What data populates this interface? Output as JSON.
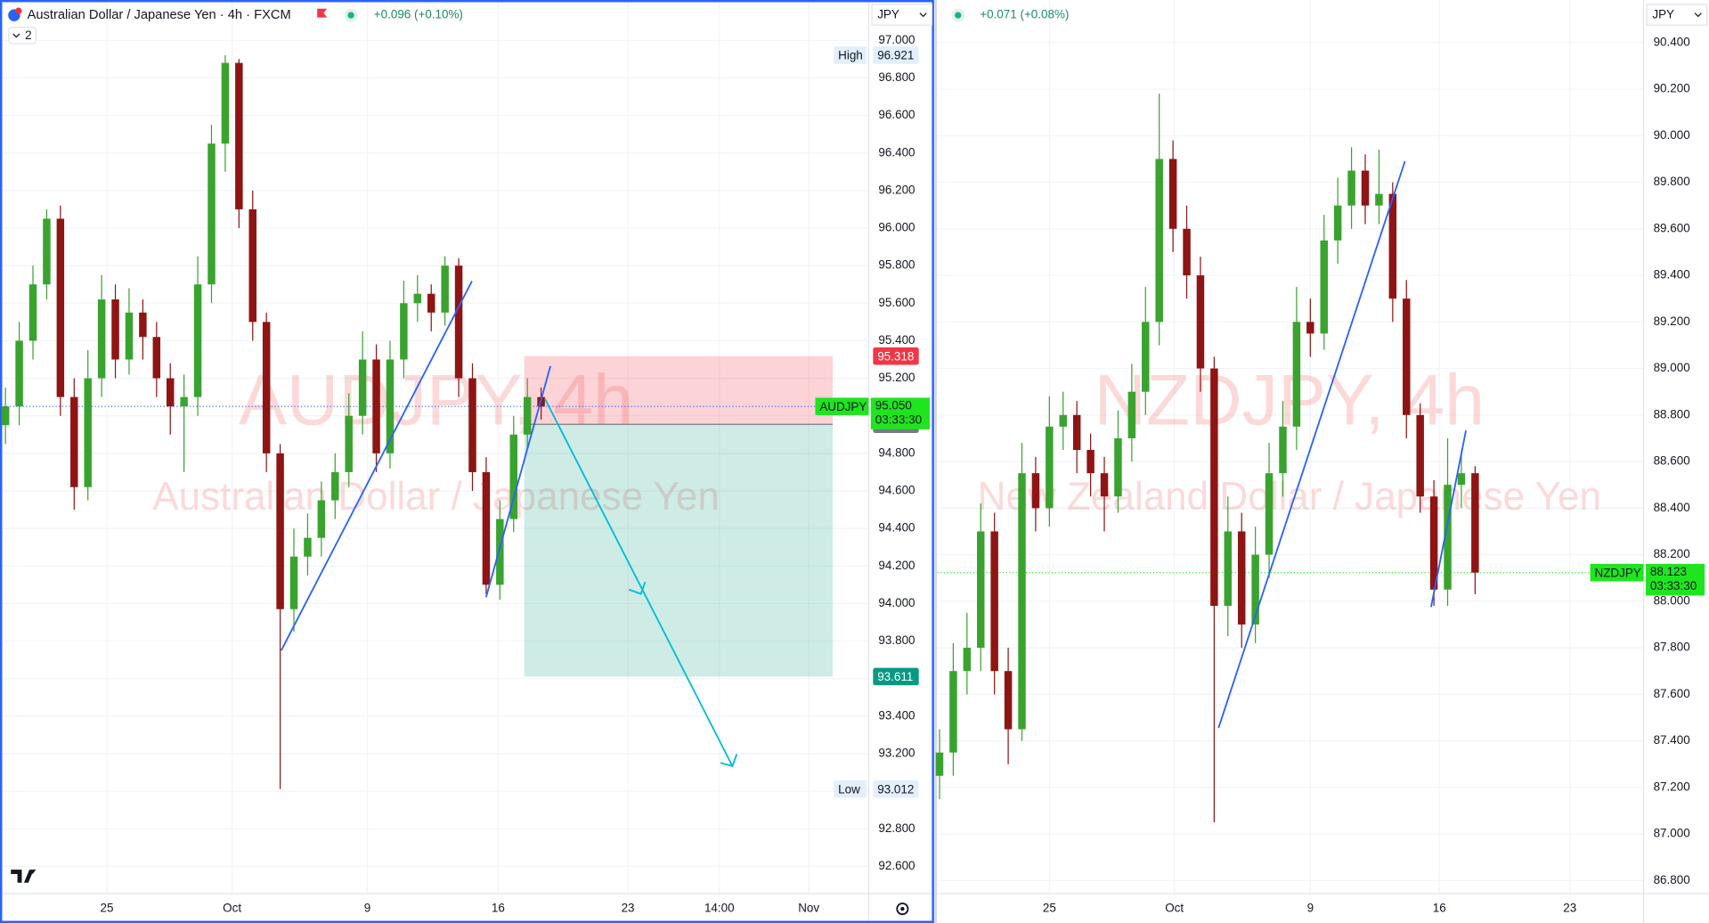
{
  "chart_data": [
    {
      "type": "candlestick",
      "title": "Australian Dollar / Japanese Yen · 4h · FXCM",
      "change": "+0.096 (+0.10%)",
      "layers": 2,
      "currency": "JPY",
      "watermark": "AUDJPY, 4h",
      "watermark_subtitle": "Australian Dollar / Japanese Yen",
      "up_color": "#3aa330",
      "down_color": "#8f1414",
      "series": [
        {
          "name": "AUDJPY",
          "open": [
            94.95,
            95.05,
            95.4,
            95.7,
            96.05,
            95.1,
            94.62,
            95.2,
            95.62,
            95.3,
            95.55,
            95.42,
            95.2,
            95.05,
            95.1,
            95.7,
            96.45,
            96.88,
            96.1,
            95.5,
            94.8,
            93.97,
            94.25,
            94.35,
            94.55,
            94.7,
            95.0,
            95.3,
            94.8,
            95.3,
            95.6,
            95.65,
            95.55,
            95.8,
            95.2,
            94.7,
            94.1,
            94.45,
            94.9,
            95.1
          ],
          "high": [
            95.15,
            95.5,
            95.8,
            96.1,
            96.12,
            95.2,
            95.35,
            95.75,
            95.7,
            95.68,
            95.62,
            95.5,
            95.28,
            95.22,
            95.85,
            96.55,
            96.921,
            96.9,
            96.2,
            95.55,
            94.85,
            94.4,
            94.48,
            94.65,
            94.8,
            95.12,
            95.45,
            95.38,
            95.4,
            95.72,
            95.75,
            95.7,
            95.85,
            95.84,
            95.28,
            94.78,
            94.55,
            95.0,
            95.2,
            95.15
          ],
          "low": [
            94.85,
            94.95,
            95.3,
            95.62,
            95.0,
            94.5,
            94.55,
            95.1,
            95.2,
            95.22,
            95.3,
            95.1,
            94.9,
            94.7,
            95.0,
            95.6,
            96.3,
            96.0,
            95.4,
            94.7,
            93.012,
            93.85,
            94.15,
            94.25,
            94.45,
            94.62,
            94.9,
            94.7,
            94.72,
            95.2,
            95.5,
            95.45,
            95.48,
            95.1,
            94.6,
            94.05,
            94.02,
            94.38,
            94.82,
            94.98
          ],
          "close": [
            95.05,
            95.4,
            95.7,
            96.05,
            95.1,
            94.62,
            95.2,
            95.62,
            95.3,
            95.55,
            95.42,
            95.2,
            95.05,
            95.1,
            95.7,
            96.45,
            96.88,
            96.1,
            95.5,
            94.8,
            93.97,
            94.25,
            94.35,
            94.55,
            94.7,
            95.0,
            95.3,
            94.8,
            95.3,
            95.6,
            95.65,
            95.55,
            95.8,
            95.2,
            94.7,
            94.1,
            94.45,
            94.9,
            95.1,
            95.05
          ]
        }
      ],
      "ylim": [
        92.455,
        97.215
      ],
      "yticks": [
        {
          "value": 92.6,
          "label": "92.600"
        },
        {
          "value": 92.8,
          "label": "92.800"
        },
        {
          "value": 93.0,
          "label": "93.000"
        },
        {
          "value": 93.2,
          "label": "93.200"
        },
        {
          "value": 93.4,
          "label": "93.400"
        },
        {
          "value": 93.6,
          "label": "93.600"
        },
        {
          "value": 93.8,
          "label": "93.800"
        },
        {
          "value": 94.0,
          "label": "94.000"
        },
        {
          "value": 94.2,
          "label": "94.200"
        },
        {
          "value": 94.4,
          "label": "94.400"
        },
        {
          "value": 94.6,
          "label": "94.600"
        },
        {
          "value": 94.8,
          "label": "94.800"
        },
        {
          "value": 95.0,
          "label": "95.000"
        },
        {
          "value": 95.2,
          "label": "95.200"
        },
        {
          "value": 95.4,
          "label": "95.400"
        },
        {
          "value": 95.6,
          "label": "95.600"
        },
        {
          "value": 95.8,
          "label": "95.800"
        },
        {
          "value": 96.0,
          "label": "96.000"
        },
        {
          "value": 96.2,
          "label": "96.200"
        },
        {
          "value": 96.4,
          "label": "96.400"
        },
        {
          "value": 96.6,
          "label": "96.600"
        },
        {
          "value": 96.8,
          "label": "96.800"
        },
        {
          "value": 97.0,
          "label": "97.000"
        }
      ],
      "xlim": [
        -0.4,
        62.85
      ],
      "xticks": [
        {
          "value": 7.38,
          "label": "25"
        },
        {
          "value": 16.5,
          "label": "Oct"
        },
        {
          "value": 26.35,
          "label": "9"
        },
        {
          "value": 35.87,
          "label": "16"
        },
        {
          "value": 45.32,
          "label": "23"
        },
        {
          "value": 51.98,
          "label": "14:00"
        },
        {
          "value": 58.49,
          "label": "Nov"
        }
      ],
      "grid": true,
      "high_mark": {
        "label": "High",
        "value": 96.921
      },
      "low_mark": {
        "label": "Low",
        "value": 93.012
      },
      "last": {
        "value": 95.05,
        "value_label": "95.050",
        "countdown": "03:33:30",
        "color": "#1fe51f"
      },
      "position": {
        "stop": 95.318,
        "entry": 94.955,
        "target": 93.611,
        "stop_color": "#f23645",
        "entry_color": "#787b86",
        "target_color": "#089981"
      }
    },
    {
      "type": "candlestick",
      "change": "+0.071 (+0.08%)",
      "currency": "JPY",
      "watermark": "NZDJPY, 4h",
      "watermark_subtitle": "New Zealand Dollar / Japanese Yen",
      "up_color": "#3aa330",
      "down_color": "#8f1414",
      "series": [
        {
          "name": "NZDJPY",
          "open": [
            87.25,
            87.35,
            87.7,
            87.8,
            88.3,
            87.7,
            87.45,
            88.55,
            88.4,
            88.75,
            88.8,
            88.65,
            88.55,
            88.45,
            88.7,
            88.9,
            89.2,
            89.9,
            89.6,
            89.4,
            89.0,
            87.98,
            88.3,
            87.9,
            88.2,
            88.55,
            88.75,
            89.2,
            89.15,
            89.55,
            89.7,
            89.85,
            89.7,
            89.75,
            89.3,
            88.8,
            88.45,
            88.05,
            88.5,
            88.55
          ],
          "high": [
            87.45,
            87.82,
            87.95,
            88.42,
            88.38,
            87.8,
            88.68,
            88.62,
            88.88,
            88.9,
            88.86,
            88.72,
            88.62,
            88.82,
            89.02,
            89.35,
            90.18,
            89.98,
            89.7,
            89.48,
            89.05,
            88.45,
            88.38,
            88.32,
            88.68,
            88.86,
            89.35,
            89.3,
            89.66,
            89.82,
            89.95,
            89.92,
            89.94,
            89.8,
            89.38,
            88.85,
            88.52,
            88.7,
            88.65,
            88.58
          ],
          "low": [
            87.15,
            87.25,
            87.6,
            87.7,
            87.6,
            87.3,
            87.4,
            88.3,
            88.32,
            88.65,
            88.55,
            88.45,
            88.3,
            88.38,
            88.6,
            88.8,
            89.1,
            89.5,
            89.3,
            88.9,
            87.05,
            87.85,
            87.8,
            87.82,
            88.1,
            88.45,
            88.65,
            89.05,
            89.08,
            89.45,
            89.6,
            89.62,
            89.62,
            89.2,
            88.7,
            88.38,
            87.98,
            87.98,
            88.4,
            88.03
          ],
          "close": [
            87.35,
            87.7,
            87.8,
            88.3,
            87.7,
            87.45,
            88.55,
            88.4,
            88.75,
            88.8,
            88.65,
            88.55,
            88.45,
            88.7,
            88.9,
            89.2,
            89.9,
            89.6,
            89.4,
            89.0,
            87.98,
            88.3,
            87.9,
            88.2,
            88.55,
            88.75,
            89.2,
            89.15,
            89.55,
            89.7,
            89.85,
            89.7,
            89.75,
            89.3,
            88.8,
            88.45,
            88.05,
            88.5,
            88.55,
            88.123
          ]
        }
      ],
      "ylim": [
        86.744,
        90.583
      ],
      "yticks": [
        {
          "value": 86.8,
          "label": "86.800"
        },
        {
          "value": 87.0,
          "label": "87.000"
        },
        {
          "value": 87.2,
          "label": "87.200"
        },
        {
          "value": 87.4,
          "label": "87.400"
        },
        {
          "value": 87.6,
          "label": "87.600"
        },
        {
          "value": 87.8,
          "label": "87.800"
        },
        {
          "value": 88.0,
          "label": "88.000"
        },
        {
          "value": 88.2,
          "label": "88.200"
        },
        {
          "value": 88.4,
          "label": "88.400"
        },
        {
          "value": 88.6,
          "label": "88.600"
        },
        {
          "value": 88.8,
          "label": "88.800"
        },
        {
          "value": 89.0,
          "label": "89.000"
        },
        {
          "value": 89.2,
          "label": "89.200"
        },
        {
          "value": 89.4,
          "label": "89.400"
        },
        {
          "value": 89.6,
          "label": "89.600"
        },
        {
          "value": 89.8,
          "label": "89.800"
        },
        {
          "value": 90.0,
          "label": "90.000"
        },
        {
          "value": 90.2,
          "label": "90.200"
        },
        {
          "value": 90.4,
          "label": "90.400"
        }
      ],
      "xlim": [
        -0.16,
        51.27
      ],
      "xticks": [
        {
          "value": 8.0,
          "label": "25"
        },
        {
          "value": 17.1,
          "label": "Oct"
        },
        {
          "value": 27.0,
          "label": "9"
        },
        {
          "value": 36.4,
          "label": "16"
        },
        {
          "value": 45.9,
          "label": "23"
        }
      ],
      "grid": true,
      "last": {
        "value": 88.123,
        "countdown": "03:33:30",
        "color": "#1fe51f"
      }
    }
  ]
}
